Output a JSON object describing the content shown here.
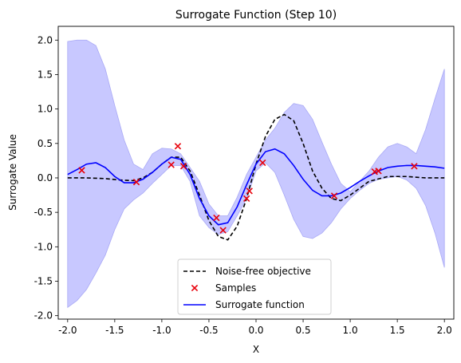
{
  "chart_data": {
    "type": "line",
    "title": "Surrogate Function (Step 10)",
    "xlabel": "X",
    "ylabel": "Surrogate Value",
    "xlim": [
      -2.1,
      2.1
    ],
    "ylim": [
      -2.05,
      2.2
    ],
    "xticks": [
      "-2.0",
      "-1.5",
      "-1.0",
      "-0.5",
      "0.0",
      "0.5",
      "1.0",
      "1.5",
      "2.0"
    ],
    "yticks": [
      "-2.0",
      "-1.5",
      "-1.0",
      "-0.5",
      "0.0",
      "0.5",
      "1.0",
      "1.5",
      "2.0"
    ],
    "grid": false,
    "legend_position": "bottom-center",
    "colors": {
      "objective": "#000000",
      "samples": "#e8000b",
      "surrogate": "#0000ff",
      "band_fill": "#c8c8ff",
      "band_edge": "#a9a9f5"
    },
    "legend": [
      {
        "label": "Noise-free objective",
        "style": "dashed-line"
      },
      {
        "label": "Samples",
        "style": "x-marker"
      },
      {
        "label": "Surrogate function",
        "style": "solid-line"
      }
    ],
    "objective": {
      "x": [
        -2.0,
        -1.8,
        -1.6,
        -1.45,
        -1.3,
        -1.2,
        -1.1,
        -1.0,
        -0.9,
        -0.8,
        -0.7,
        -0.6,
        -0.5,
        -0.4,
        -0.3,
        -0.2,
        -0.1,
        0.0,
        0.1,
        0.2,
        0.3,
        0.4,
        0.5,
        0.6,
        0.7,
        0.8,
        0.9,
        1.0,
        1.2,
        1.4,
        1.6,
        1.8,
        2.0
      ],
      "y": [
        0.0,
        0.0,
        -0.01,
        -0.03,
        -0.04,
        0.0,
        0.08,
        0.2,
        0.3,
        0.3,
        0.1,
        -0.25,
        -0.62,
        -0.85,
        -0.9,
        -0.7,
        -0.3,
        0.2,
        0.6,
        0.85,
        0.92,
        0.83,
        0.5,
        0.1,
        -0.15,
        -0.3,
        -0.33,
        -0.25,
        -0.05,
        0.02,
        0.02,
        0.0,
        0.0
      ]
    },
    "surrogate": {
      "x": [
        -2.0,
        -1.9,
        -1.8,
        -1.7,
        -1.6,
        -1.5,
        -1.4,
        -1.3,
        -1.2,
        -1.1,
        -1.0,
        -0.9,
        -0.8,
        -0.7,
        -0.6,
        -0.5,
        -0.4,
        -0.3,
        -0.2,
        -0.1,
        0.0,
        0.1,
        0.2,
        0.3,
        0.4,
        0.5,
        0.6,
        0.7,
        0.8,
        0.9,
        1.0,
        1.1,
        1.2,
        1.3,
        1.4,
        1.5,
        1.6,
        1.7,
        1.8,
        1.9,
        2.0
      ],
      "y": [
        0.05,
        0.12,
        0.2,
        0.22,
        0.15,
        0.02,
        -0.07,
        -0.07,
        -0.02,
        0.08,
        0.2,
        0.3,
        0.27,
        0.05,
        -0.3,
        -0.55,
        -0.68,
        -0.65,
        -0.42,
        -0.1,
        0.2,
        0.38,
        0.42,
        0.35,
        0.18,
        -0.02,
        -0.18,
        -0.26,
        -0.26,
        -0.22,
        -0.14,
        -0.05,
        0.03,
        0.1,
        0.15,
        0.17,
        0.18,
        0.18,
        0.17,
        0.16,
        0.14
      ]
    },
    "confidence_upper": [
      1.98,
      2.0,
      2.0,
      1.92,
      1.58,
      1.05,
      0.55,
      0.2,
      0.12,
      0.35,
      0.43,
      0.42,
      0.35,
      0.15,
      -0.05,
      -0.38,
      -0.55,
      -0.55,
      -0.28,
      0.05,
      0.3,
      0.55,
      0.72,
      0.95,
      1.08,
      1.05,
      0.85,
      0.52,
      0.2,
      -0.08,
      -0.2,
      -0.05,
      0.1,
      0.3,
      0.45,
      0.5,
      0.45,
      0.35,
      0.7,
      1.15,
      1.58
    ],
    "confidence_lower": [
      -1.88,
      -1.78,
      -1.62,
      -1.38,
      -1.12,
      -0.75,
      -0.45,
      -0.32,
      -0.22,
      -0.08,
      0.05,
      0.18,
      0.18,
      -0.05,
      -0.55,
      -0.72,
      -0.82,
      -0.78,
      -0.55,
      -0.3,
      0.1,
      0.22,
      0.08,
      -0.25,
      -0.6,
      -0.85,
      -0.88,
      -0.8,
      -0.65,
      -0.45,
      -0.3,
      -0.18,
      -0.08,
      -0.02,
      0.0,
      0.02,
      -0.03,
      -0.15,
      -0.4,
      -0.8,
      -1.3
    ],
    "samples": {
      "x": [
        -1.85,
        -1.27,
        -0.9,
        -0.83,
        -0.77,
        -0.42,
        -0.35,
        -0.1,
        -0.07,
        0.07,
        0.83,
        1.26,
        1.3,
        1.68
      ],
      "y": [
        0.11,
        -0.06,
        0.19,
        0.46,
        0.17,
        -0.58,
        -0.76,
        -0.3,
        -0.19,
        0.22,
        -0.26,
        0.09,
        0.1,
        0.17
      ]
    }
  }
}
